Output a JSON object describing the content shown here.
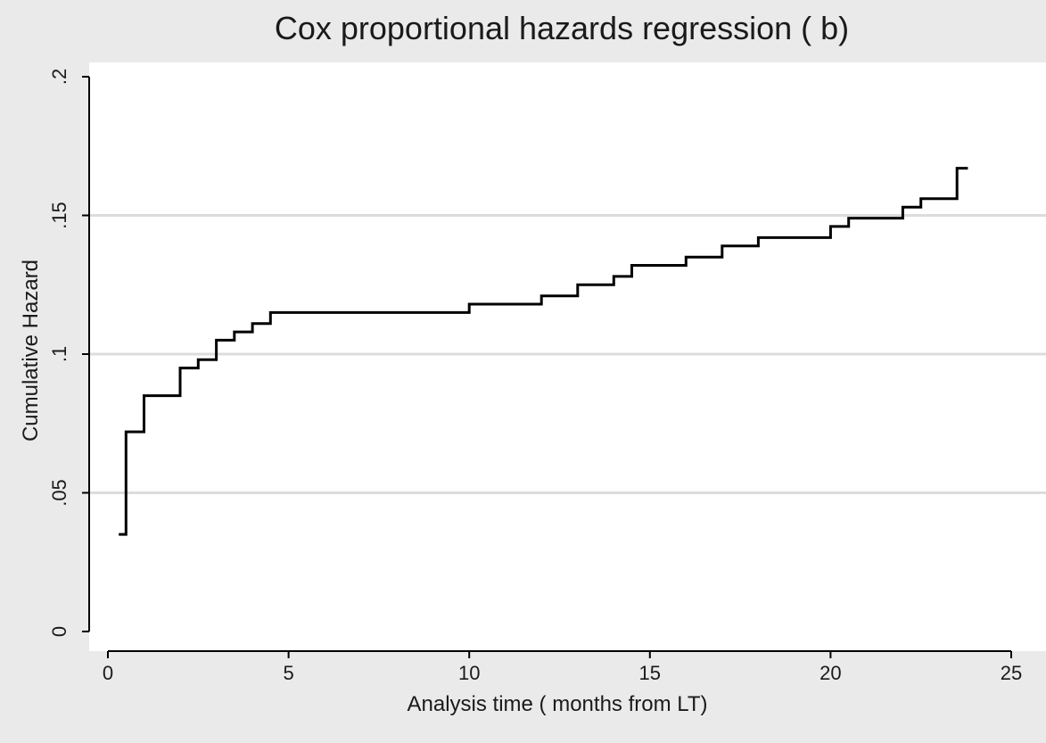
{
  "chart_data": {
    "type": "line",
    "step": true,
    "title": "Cox proportional hazards regression ( b)",
    "xlabel": "Analysis time ( months from LT)",
    "ylabel": "Cumulative Hazard",
    "xlim": [
      0,
      25
    ],
    "ylim": [
      0,
      0.2
    ],
    "x_ticks": [
      0,
      5,
      10,
      15,
      20,
      25
    ],
    "x_tick_labels": [
      "0",
      "5",
      "10",
      "15",
      "20",
      "25"
    ],
    "y_ticks": [
      0,
      0.05,
      0.1,
      0.15,
      0.2
    ],
    "y_tick_labels": [
      "0",
      ".05",
      ".1",
      ".15",
      ".2"
    ],
    "y_gridlines": [
      0.05,
      0.1,
      0.15
    ],
    "colors": {
      "background": "#eaeaea",
      "plot_region": "#ffffff",
      "line": "#000000",
      "grid": "#dcdcdc"
    },
    "series": [
      {
        "x": [
          0.3,
          0.5,
          1.0,
          2.0,
          2.5,
          3.0,
          3.5,
          4.0,
          4.5,
          10.0,
          12.0,
          13.0,
          14.0,
          14.5,
          16.0,
          17.0,
          18.0,
          20.0,
          20.5,
          22.0,
          22.5,
          23.5,
          23.8
        ],
        "y": [
          0.035,
          0.072,
          0.085,
          0.095,
          0.098,
          0.105,
          0.108,
          0.111,
          0.115,
          0.118,
          0.121,
          0.125,
          0.128,
          0.132,
          0.135,
          0.139,
          0.142,
          0.146,
          0.149,
          0.153,
          0.156,
          0.167,
          0.167
        ]
      }
    ]
  }
}
